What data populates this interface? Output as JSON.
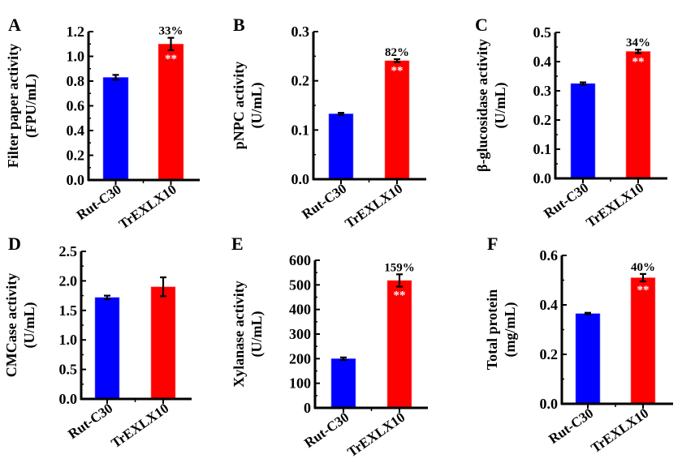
{
  "chart_data": [
    {
      "panel": "A",
      "type": "bar",
      "title": "",
      "xlabel": "",
      "ylabel": [
        "Filter paper activity",
        "(FPU/mL)"
      ],
      "categories": [
        "Rut-C30",
        "TrEXLX10"
      ],
      "values": [
        0.83,
        1.1
      ],
      "errors": [
        0.02,
        0.05
      ],
      "colors": [
        "#0000ff",
        "#ff0000"
      ],
      "ylim": [
        0,
        1.2
      ],
      "yticks": [
        "0.0",
        "0.2",
        "0.4",
        "0.6",
        "0.8",
        "1.0",
        "1.2"
      ],
      "ytick_values": [
        0,
        0.2,
        0.4,
        0.6,
        0.8,
        1.0,
        1.2
      ],
      "annotations": {
        "percent": "33%",
        "significance": "**"
      },
      "grid": false
    },
    {
      "panel": "B",
      "type": "bar",
      "title": "",
      "xlabel": "",
      "ylabel": [
        "pNPC activity",
        "(U/mL)"
      ],
      "categories": [
        "Rut-C30",
        "TrEXLX10"
      ],
      "values": [
        0.133,
        0.241
      ],
      "errors": [
        0.002,
        0.003
      ],
      "colors": [
        "#0000ff",
        "#ff0000"
      ],
      "ylim": [
        0,
        0.3
      ],
      "yticks": [
        "0.0",
        "0.1",
        "0.2",
        "0.3"
      ],
      "ytick_values": [
        0,
        0.1,
        0.2,
        0.3
      ],
      "annotations": {
        "percent": "82%",
        "significance": "**"
      },
      "grid": false
    },
    {
      "panel": "C",
      "type": "bar",
      "title": "",
      "xlabel": "",
      "ylabel": [
        "β-glucosidase activity",
        "(U/mL)"
      ],
      "categories": [
        "Rut-C30",
        "TrEXLX10"
      ],
      "values": [
        0.325,
        0.435
      ],
      "errors": [
        0.004,
        0.006
      ],
      "colors": [
        "#0000ff",
        "#ff0000"
      ],
      "ylim": [
        0,
        0.5
      ],
      "yticks": [
        "0.0",
        "0.1",
        "0.2",
        "0.3",
        "0.4",
        "0.5"
      ],
      "ytick_values": [
        0,
        0.1,
        0.2,
        0.3,
        0.4,
        0.5
      ],
      "annotations": {
        "percent": "34%",
        "significance": "**"
      },
      "grid": false
    },
    {
      "panel": "D",
      "type": "bar",
      "title": "",
      "xlabel": "",
      "ylabel": [
        "CMCase activity",
        "(U/mL)"
      ],
      "categories": [
        "Rut-C30",
        "TrEXLX10"
      ],
      "values": [
        1.72,
        1.9
      ],
      "errors": [
        0.03,
        0.16
      ],
      "colors": [
        "#0000ff",
        "#ff0000"
      ],
      "ylim": [
        0,
        2.5
      ],
      "yticks": [
        "0.0",
        "0.5",
        "1.0",
        "1.5",
        "2.0",
        "2.5"
      ],
      "ytick_values": [
        0,
        0.5,
        1.0,
        1.5,
        2.0,
        2.5
      ],
      "annotations": null,
      "grid": false
    },
    {
      "panel": "E",
      "type": "bar",
      "title": "",
      "xlabel": "",
      "ylabel": [
        "Xylanase activity",
        "(U/mL)"
      ],
      "categories": [
        "Rut-C30",
        "TrEXLX10"
      ],
      "values": [
        200,
        518
      ],
      "errors": [
        5,
        25
      ],
      "colors": [
        "#0000ff",
        "#ff0000"
      ],
      "ylim": [
        0,
        600
      ],
      "yticks": [
        "0",
        "100",
        "200",
        "300",
        "400",
        "500",
        "600"
      ],
      "ytick_values": [
        0,
        100,
        200,
        300,
        400,
        500,
        600
      ],
      "annotations": {
        "percent": "159%",
        "significance": "**"
      },
      "grid": false
    },
    {
      "panel": "F",
      "type": "bar",
      "title": "",
      "xlabel": "",
      "ylabel": [
        "Total protein",
        "(mg/mL)"
      ],
      "categories": [
        "Rut-C30",
        "TrEXLX10"
      ],
      "values": [
        0.365,
        0.51
      ],
      "errors": [
        0.003,
        0.015
      ],
      "colors": [
        "#0000ff",
        "#ff0000"
      ],
      "ylim": [
        0,
        0.6
      ],
      "yticks": [
        "0.0",
        "0.2",
        "0.4",
        "0.6"
      ],
      "ytick_values": [
        0,
        0.2,
        0.4,
        0.6
      ],
      "annotations": {
        "percent": "40%",
        "significance": "**"
      },
      "grid": false
    }
  ]
}
